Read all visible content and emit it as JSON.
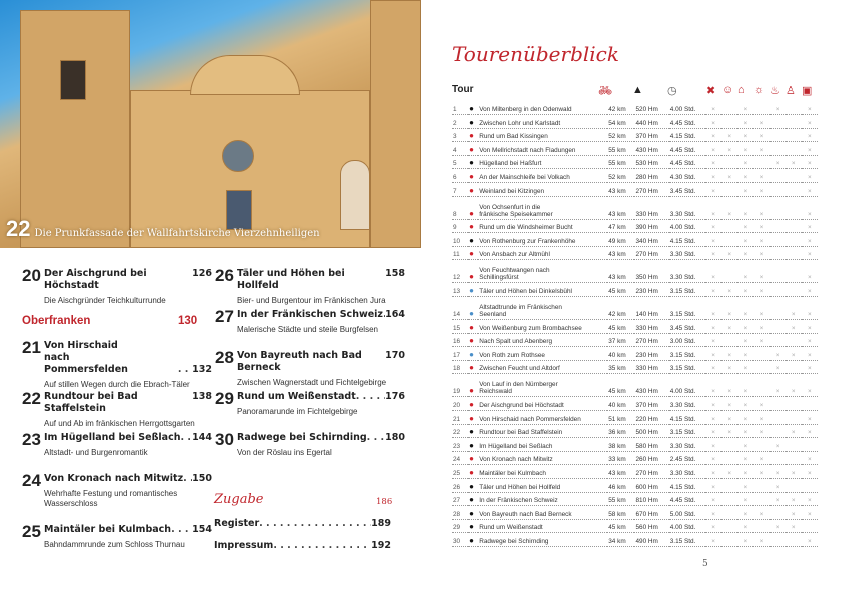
{
  "photo": {
    "caption_number": "22",
    "caption": "Die Prunkfassade der Wallfahrtskirche Vierzehnheiligen"
  },
  "toc": {
    "entries": [
      {
        "num": "20",
        "title": "Der Aischgrund bei Höchstadt",
        "page": "126",
        "sub": "Die Aischgründer Teichkulturrunde"
      },
      {
        "num": "21",
        "title": "Von Hirschaid nach Pommersfelden",
        "page": "132",
        "sub": "Auf stillen Wegen durch die Ebrach-Täler"
      },
      {
        "num": "22",
        "title": "Rundtour bei Bad Staffelstein",
        "page": "138",
        "sub": "Auf und Ab im fränkischen Herrgottsgarten"
      },
      {
        "num": "23",
        "title": "Im Hügelland bei Seßlach",
        "page": "144",
        "sub": "Altstadt- und Burgenromantik"
      },
      {
        "num": "24",
        "title": "Von Kronach nach Mitwitz",
        "page": "150",
        "sub": "Wehrhafte Festung und romantisches Wasserschloss"
      },
      {
        "num": "25",
        "title": "Maintäler bei Kulmbach",
        "page": "154",
        "sub": "Bahndammrunde zum Schloss Thurnau"
      },
      {
        "num": "26",
        "title": "Täler und Höhen bei Hollfeld",
        "page": "158",
        "sub": "Bier- und Burgentour im Fränkischen Jura"
      },
      {
        "num": "27",
        "title": "In der Fränkischen Schweiz",
        "page": "164",
        "sub": "Malerische Städte und steile Burgfelsen"
      },
      {
        "num": "28",
        "title": "Von Bayreuth nach Bad Berneck",
        "page": "170",
        "sub": "Zwischen Wagnerstadt und Fichtelgebirge"
      },
      {
        "num": "29",
        "title": "Rund um Weißenstadt",
        "page": "176",
        "sub": "Panoramarunde im Fichtelgebirge"
      },
      {
        "num": "30",
        "title": "Radwege bei Schirnding",
        "page": "180",
        "sub": "Von der Röslau ins Egertal"
      }
    ],
    "section": {
      "label": "Oberfranken",
      "page": "130"
    },
    "extra": {
      "label": "Zugabe",
      "page": "186"
    },
    "register": {
      "label": "Register",
      "page": "189"
    },
    "impressum": {
      "label": "Impressum",
      "page": "192"
    }
  },
  "overview": {
    "title": "Tourenüberblick",
    "col_tour": "Tour",
    "icons": [
      "bicycle-icon",
      "mountain-icon",
      "clock-icon",
      "restaurant-icon",
      "smiley-icon",
      "museum-icon",
      "sun-icon",
      "swimming-icon",
      "person-icon",
      "bus-icon"
    ],
    "accent": "#c0262d",
    "dot_colors": {
      "k": "#111111",
      "r": "#d0202a",
      "b": "#4a8fc9"
    },
    "rows": [
      [
        "1",
        "k",
        "Von Miltenberg in den Odenwald",
        "42 km",
        "520 Hm",
        "4.00 Std.",
        "x.x.x.x"
      ],
      [
        "2",
        "k",
        "Zwischen Lohr und Karlstadt",
        "54 km",
        "440 Hm",
        "4.45 Std.",
        "x.xx..x"
      ],
      [
        "3",
        "r",
        "Rund um Bad Kissingen",
        "52 km",
        "370 Hm",
        "4.15 Std.",
        "xxxx..x"
      ],
      [
        "4",
        "r",
        "Von Mellrichstadt nach Fladungen",
        "55 km",
        "430 Hm",
        "4.45 Std.",
        "xxxx..x"
      ],
      [
        "5",
        "k",
        "Hügelland bei Haßfurt",
        "55 km",
        "530 Hm",
        "4.45 Std.",
        "x.x.xxx"
      ],
      [
        "6",
        "r",
        "An der Mainschleife bei Volkach",
        "52 km",
        "280 Hm",
        "4.30 Std.",
        "xxxx..x"
      ],
      [
        "7",
        "r",
        "Weinland bei Kitzingen",
        "43 km",
        "270 Hm",
        "3.45 Std.",
        "x.xx..x"
      ],
      [
        "8",
        "r",
        "Von Ochsenfurt in die|fränkische Speisekammer",
        "43 km",
        "330 Hm",
        "3.30 Std.",
        "xxxx..x"
      ],
      [
        "9",
        "r",
        "Rund um die Windsheimer Bucht",
        "47 km",
        "390 Hm",
        "4.00 Std.",
        "x.xx..x"
      ],
      [
        "10",
        "k",
        "Von Rothenburg zur Frankenhöhe",
        "49 km",
        "340 Hm",
        "4.15 Std.",
        "x.xx..x"
      ],
      [
        "11",
        "r",
        "Von Ansbach zur Altmühl",
        "43 km",
        "270 Hm",
        "3.30 Std.",
        "xxxx..x"
      ],
      [
        "12",
        "r",
        "Von Feuchtwangen nach|Schillingsfürst",
        "43 km",
        "350 Hm",
        "3.30 Std.",
        "x.xx..x"
      ],
      [
        "13",
        "b",
        "Täler und Höhen bei Dinkelsbühl",
        "45 km",
        "230 Hm",
        "3.15 Std.",
        "xxxx..x"
      ],
      [
        "14",
        "b",
        "Altstadtrunde im Fränkischen|Seenland",
        "42 km",
        "140 Hm",
        "3.15 Std.",
        "xxxx.xx"
      ],
      [
        "15",
        "r",
        "Von Weißenburg zum Brombachsee",
        "45 km",
        "330 Hm",
        "3.45 Std.",
        "xxxx.xx"
      ],
      [
        "16",
        "r",
        "Nach Spalt und Abenberg",
        "37 km",
        "270 Hm",
        "3.00 Std.",
        "x.xx..x"
      ],
      [
        "17",
        "b",
        "Von Roth zum Rothsee",
        "40 km",
        "230 Hm",
        "3.15 Std.",
        "xxx.xxx"
      ],
      [
        "18",
        "r",
        "Zwischen Feucht und Altdorf",
        "35 km",
        "330 Hm",
        "3.15 Std.",
        "xxx.x.x"
      ],
      [
        "19",
        "r",
        "Von Lauf in den Nürnberger|Reichswald",
        "45 km",
        "430 Hm",
        "4.00 Std.",
        "xxx.xxx"
      ],
      [
        "20",
        "r",
        "Der Aischgrund bei Höchstadt",
        "40 km",
        "370 Hm",
        "3.30 Std.",
        "xxxx..."
      ],
      [
        "21",
        "r",
        "Von Hirschaid nach Pommersfelden",
        "51 km",
        "220 Hm",
        "4.15 Std.",
        "xxxx..x"
      ],
      [
        "22",
        "k",
        "Rundtour bei Bad Staffelstein",
        "36 km",
        "500 Hm",
        "3.15 Std.",
        "xxxx.xx"
      ],
      [
        "23",
        "k",
        "Im Hügelland bei Seßlach",
        "38 km",
        "580 Hm",
        "3.30 Std.",
        "x.x.x.."
      ],
      [
        "24",
        "r",
        "Von Kronach nach Mitwitz",
        "33 km",
        "260 Hm",
        "2.45 Std.",
        "x.xx..x"
      ],
      [
        "25",
        "r",
        "Maintäler bei Kulmbach",
        "43 km",
        "270 Hm",
        "3.30 Std.",
        "xxxxxxx"
      ],
      [
        "26",
        "k",
        "Täler und Höhen bei Hollfeld",
        "46 km",
        "600 Hm",
        "4.15 Std.",
        "x.x.x.."
      ],
      [
        "27",
        "k",
        "In der Fränkischen Schweiz",
        "55 km",
        "810 Hm",
        "4.45 Std.",
        "x.x.xxx"
      ],
      [
        "28",
        "k",
        "Von Bayreuth nach Bad Berneck",
        "58 km",
        "670 Hm",
        "5.00 Std.",
        "x.xx.xx"
      ],
      [
        "29",
        "k",
        "Rund um Weißenstadt",
        "45 km",
        "560 Hm",
        "4.00 Std.",
        "x.x.xx."
      ],
      [
        "30",
        "k",
        "Radwege bei Schirnding",
        "34 km",
        "490 Hm",
        "3.15 Std.",
        "x.xx..x"
      ]
    ],
    "page_number": "5"
  }
}
